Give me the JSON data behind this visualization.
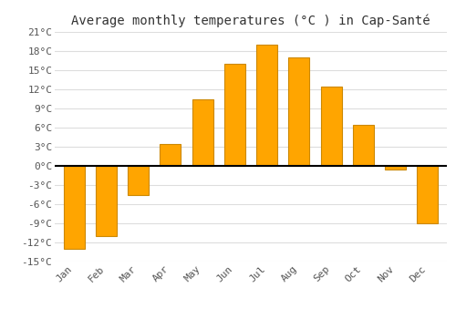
{
  "title": "Average monthly temperatures (°C ) in Cap-Santé",
  "months": [
    "Jan",
    "Feb",
    "Mar",
    "Apr",
    "May",
    "Jun",
    "Jul",
    "Aug",
    "Sep",
    "Oct",
    "Nov",
    "Dec"
  ],
  "temperatures": [
    -13,
    -11,
    -4.5,
    3.5,
    10.5,
    16,
    19,
    17,
    12.5,
    6.5,
    -0.5,
    -9
  ],
  "bar_color": "#FFA500",
  "bar_edge_color": "#CC8800",
  "background_color": "#FFFFFF",
  "grid_color": "#DDDDDD",
  "zero_line_color": "#000000",
  "ylim": [
    -15,
    21
  ],
  "yticks": [
    -15,
    -12,
    -9,
    -6,
    -3,
    0,
    3,
    6,
    9,
    12,
    15,
    18,
    21
  ],
  "ytick_labels": [
    "-15°C",
    "-12°C",
    "-9°C",
    "-6°C",
    "-3°C",
    "0°C",
    "3°C",
    "6°C",
    "9°C",
    "12°C",
    "15°C",
    "18°C",
    "21°C"
  ],
  "title_fontsize": 10,
  "tick_fontsize": 8,
  "font_family": "monospace",
  "bar_width": 0.65
}
